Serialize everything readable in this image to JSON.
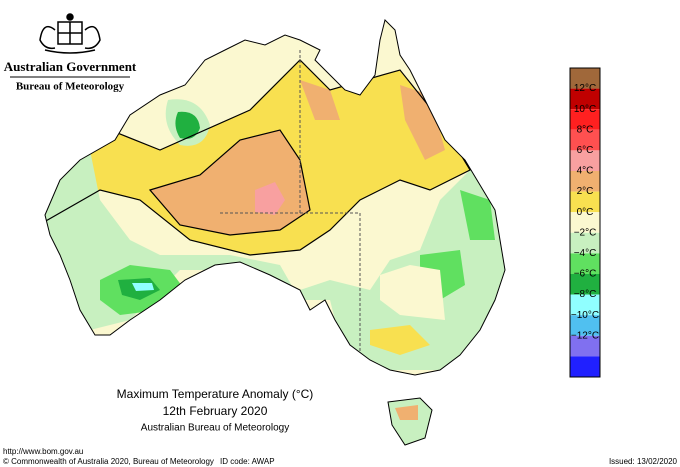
{
  "header": {
    "government": "Australian Government",
    "bureau": "Bureau of Meteorology"
  },
  "legend": {
    "colors": [
      "#a0683a",
      "#c00000",
      "#ff2020",
      "#ff5050",
      "#f8a0a0",
      "#f0b070",
      "#f8e050",
      "#fbf8d0",
      "#c8f0c0",
      "#60e060",
      "#20b040",
      "#90ffff",
      "#50c0f0",
      "#8070f0",
      "#2020ff"
    ],
    "labels": [
      "12°C",
      "10°C",
      "8°C",
      "6°C",
      "4°C",
      "2°C",
      "0°C",
      "−2°C",
      "−4°C",
      "−6°C",
      "−8°C",
      "−10°C",
      "−12°C"
    ]
  },
  "caption": {
    "title": "Maximum Temperature Anomaly (°C)",
    "date": "12th February 2020",
    "source": "Australian Bureau of Meteorology"
  },
  "footer": {
    "url": "http://www.bom.gov.au",
    "copyright": "© Commonwealth of Australia 2020, Bureau of Meteorology",
    "id_code": "ID code: AWAP",
    "issued": "Issued: 13/02/2020"
  }
}
